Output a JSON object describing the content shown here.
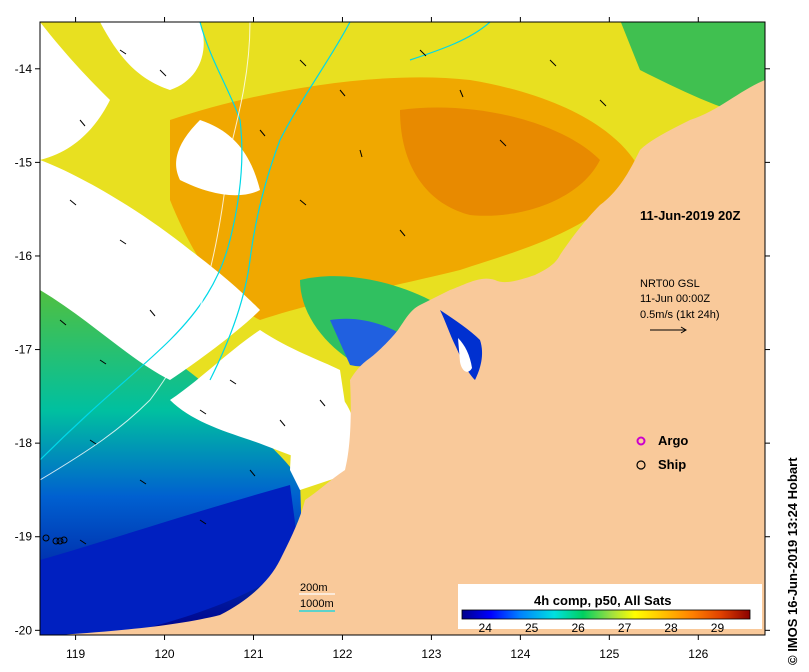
{
  "map": {
    "timestamp": "11-Jun-2019 20Z",
    "y_labels": [
      "-14",
      "-15",
      "-16",
      "-17",
      "-18",
      "-19",
      "-20"
    ],
    "x_labels": [
      "119",
      "120",
      "121",
      "122",
      "123",
      "124",
      "125",
      "126"
    ],
    "lat_range": [
      -20.05,
      -13.5
    ],
    "lon_range": [
      118.6,
      126.75
    ],
    "land_color": "#f9c99a",
    "no_data_color": "#ffffff"
  },
  "current_legend": {
    "source": "NRT00 GSL",
    "datetime": "11-Jun 00:00Z",
    "scale": "0.5m/s (1kt 24h)"
  },
  "markers": {
    "argo_label": "Argo",
    "ship_label": "Ship",
    "argo_color": "#cc00cc"
  },
  "contours": {
    "depth_200": "200m",
    "depth_1000": "1000m",
    "color": "#00d8e8"
  },
  "colorbar": {
    "title": "4h comp, p50, All Sats",
    "ticks": [
      "24",
      "25",
      "26",
      "27",
      "28",
      "29"
    ],
    "min": 23.5,
    "max": 29.7,
    "colors": [
      "#00008b",
      "#0000ff",
      "#0080ff",
      "#00e0e0",
      "#00d060",
      "#a0e040",
      "#ffff00",
      "#ffc000",
      "#ff8000",
      "#e04000",
      "#8b0000"
    ]
  },
  "credit": "© IMOS 16-Jun-2019 13:24 Hobart"
}
